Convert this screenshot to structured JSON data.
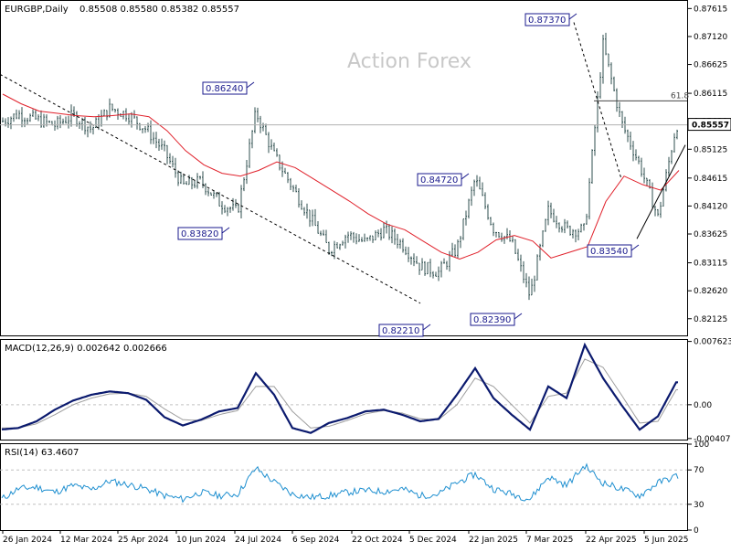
{
  "chart_data": [
    {
      "type": "candlestick",
      "title": "EURGBP,Daily",
      "ohlc_label": "0.85508 0.85580 0.85382 0.85557",
      "watermark": "Action Forex",
      "ylim": [
        0.8183,
        0.8775
      ],
      "y_ticks": [
        "0.87615",
        "0.87120",
        "0.86625",
        "0.86115",
        "0.85620",
        "0.85125",
        "0.84615",
        "0.84120",
        "0.83625",
        "0.83115",
        "0.82620",
        "0.82125"
      ],
      "x_ticks": [
        "26 Jan 2024",
        "12 Mar 2024",
        "25 Apr 2024",
        "10 Jun 2024",
        "24 Jul 2024",
        "6 Sep 2024",
        "22 Oct 2024",
        "5 Dec 2024",
        "22 Jan 2025",
        "7 Mar 2025",
        "22 Apr 2025",
        "5 Jun 2025"
      ],
      "current_price": "0.85557",
      "fib_label": "61.8",
      "fib_level": 0.8598,
      "swing_labels": [
        {
          "label": "0.86240",
          "value": 0.8624
        },
        {
          "label": "0.83820",
          "value": 0.8382
        },
        {
          "label": "0.82210",
          "value": 0.8221
        },
        {
          "label": "0.84720",
          "value": 0.8472
        },
        {
          "label": "0.82390",
          "value": 0.8239
        },
        {
          "label": "0.87370",
          "value": 0.8737
        },
        {
          "label": "0.83540",
          "value": 0.8354
        }
      ],
      "series": [
        {
          "x": [
            0,
            20,
            40,
            60,
            80,
            100,
            120,
            140,
            160,
            180,
            200,
            220,
            240,
            260,
            280,
            300,
            320,
            340,
            360,
            380,
            400,
            420,
            440,
            460,
            480,
            500,
            520,
            540,
            560,
            580,
            600,
            620,
            640,
            660,
            680,
            700,
            720,
            740
          ],
          "close": [
            0.856,
            0.8575,
            0.8565,
            0.8555,
            0.8572,
            0.8548,
            0.8585,
            0.8574,
            0.8548,
            0.8508,
            0.8448,
            0.8456,
            0.8418,
            0.8402,
            0.8578,
            0.8502,
            0.8445,
            0.839,
            0.8335,
            0.8362,
            0.8348,
            0.837,
            0.8345,
            0.8305,
            0.8295,
            0.8336,
            0.846,
            0.8372,
            0.8348,
            0.8252,
            0.8404,
            0.837,
            0.837,
            0.8698,
            0.856,
            0.8485,
            0.8392,
            0.8555
          ]
        },
        {
          "name": "",
          "x": [
            0,
            20,
            40,
            60,
            80,
            100,
            120,
            140,
            160,
            180,
            200,
            220,
            240,
            260,
            280,
            300,
            320,
            340,
            360,
            380,
            400,
            420,
            440,
            460,
            480,
            500,
            520,
            540,
            560,
            580,
            600,
            620,
            640,
            660,
            680,
            700,
            720,
            740
          ],
          "values": [
            0.861,
            0.8593,
            0.858,
            0.8576,
            0.8572,
            0.857,
            0.8572,
            0.8575,
            0.857,
            0.8545,
            0.851,
            0.8485,
            0.847,
            0.8465,
            0.8475,
            0.849,
            0.848,
            0.846,
            0.844,
            0.842,
            0.8398,
            0.838,
            0.837,
            0.835,
            0.833,
            0.8318,
            0.833,
            0.8352,
            0.836,
            0.835,
            0.832,
            0.833,
            0.834,
            0.842,
            0.8465,
            0.845,
            0.844,
            0.8475
          ]
        }
      ],
      "trendline_down": [
        [
          0,
          0.8645
        ],
        [
          460,
          0.824
        ]
      ],
      "trendline_drop": [
        [
          628,
          0.8737
        ],
        [
          680,
          0.846
        ]
      ],
      "trendline_up": [
        [
          697,
          0.8354
        ],
        [
          750,
          0.852
        ]
      ]
    },
    {
      "type": "line",
      "title": "MACD(12,26,9) 0.002642 0.002666",
      "ylim": [
        -0.0042,
        0.0078
      ],
      "y_ticks": [
        "0.007623",
        "0.00",
        "-0.004073"
      ],
      "series": [
        {
          "name": "MACD",
          "x": [
            0,
            20,
            40,
            60,
            80,
            100,
            120,
            140,
            160,
            180,
            200,
            220,
            240,
            260,
            280,
            300,
            320,
            340,
            360,
            380,
            400,
            420,
            440,
            460,
            480,
            500,
            520,
            540,
            560,
            580,
            600,
            620,
            640,
            660,
            680,
            700,
            720,
            740
          ],
          "values": [
            -0.003,
            -0.0028,
            -0.002,
            -0.0006,
            0.0005,
            0.0012,
            0.0016,
            0.0014,
            0.0006,
            -0.0015,
            -0.0025,
            -0.0018,
            -0.0008,
            -0.0004,
            0.0038,
            0.0012,
            -0.0028,
            -0.0034,
            -0.0022,
            -0.0016,
            -0.0008,
            -0.0006,
            -0.0012,
            -0.002,
            -0.0017,
            0.0012,
            0.0044,
            0.0008,
            -0.0012,
            -0.003,
            0.0022,
            0.0008,
            0.0072,
            0.0032,
            0.0,
            -0.003,
            -0.0014,
            0.0027
          ]
        },
        {
          "name": "Signal",
          "x": [
            0,
            20,
            40,
            60,
            80,
            100,
            120,
            140,
            160,
            180,
            200,
            220,
            240,
            260,
            280,
            300,
            320,
            340,
            360,
            380,
            400,
            420,
            440,
            460,
            480,
            500,
            520,
            540,
            560,
            580,
            600,
            620,
            640,
            660,
            680,
            700,
            720,
            740
          ],
          "values": [
            -0.0028,
            -0.0028,
            -0.0023,
            -0.0012,
            0.0,
            0.0008,
            0.0013,
            0.0014,
            0.001,
            -0.0005,
            -0.0018,
            -0.0019,
            -0.0012,
            -0.0007,
            0.0022,
            0.0022,
            -0.0008,
            -0.0028,
            -0.0026,
            -0.0019,
            -0.0011,
            -0.0007,
            -0.001,
            -0.0017,
            -0.0018,
            0.0,
            0.0032,
            0.0022,
            0.0,
            -0.0022,
            0.001,
            0.0014,
            0.0055,
            0.0045,
            0.0012,
            -0.0022,
            -0.002,
            0.0018
          ]
        }
      ]
    },
    {
      "type": "line",
      "title": "RSI(14) 63.4607",
      "ylim": [
        0,
        100
      ],
      "y_ticks": [
        "100",
        "70",
        "30",
        "0"
      ],
      "y_tick_values": [
        100,
        70,
        30,
        0
      ],
      "series": [
        {
          "name": "",
          "x": [
            0,
            20,
            40,
            60,
            80,
            100,
            120,
            140,
            160,
            180,
            200,
            220,
            240,
            260,
            280,
            300,
            320,
            340,
            360,
            380,
            400,
            420,
            440,
            460,
            480,
            500,
            520,
            540,
            560,
            580,
            600,
            620,
            640,
            660,
            680,
            700,
            720,
            740
          ],
          "values": [
            35,
            48,
            50,
            44,
            52,
            47,
            57,
            53,
            48,
            40,
            36,
            44,
            40,
            42,
            72,
            56,
            42,
            38,
            40,
            44,
            46,
            45,
            48,
            40,
            42,
            55,
            65,
            48,
            42,
            36,
            62,
            52,
            75,
            55,
            48,
            40,
            55,
            63
          ]
        }
      ]
    }
  ]
}
